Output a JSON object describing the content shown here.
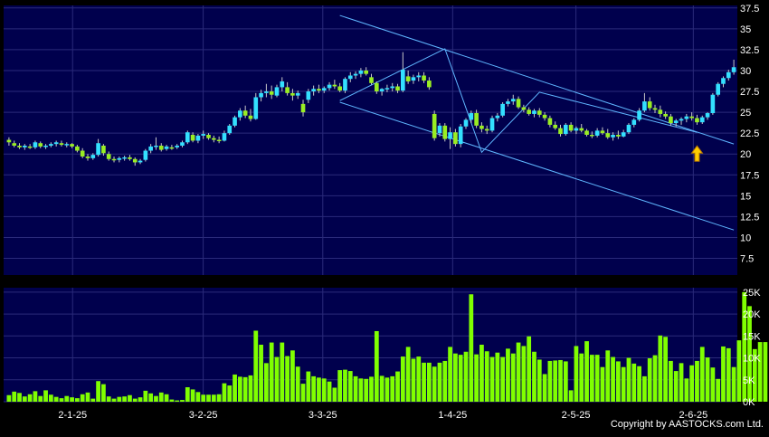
{
  "copyright": "Copyright by AASTOCKS.com Ltd.",
  "colors": {
    "panel_bg": "#00004d",
    "grid": "#2a2a7a",
    "up_candle": "#33e0ff",
    "down_candle": "#99ee22",
    "volume": "#80ff00",
    "trendline": "#5fb6ff",
    "arrow": "#ffcc00"
  },
  "chart_data": [
    {
      "type": "candlestick",
      "yaxis": {
        "ticks": [
          "37.5",
          "35",
          "32.5",
          "30",
          "27.5",
          "25",
          "22.5",
          "20",
          "17.5",
          "15",
          "12.5",
          "10",
          "7.5"
        ],
        "range": [
          5.5,
          37.8
        ],
        "side": "right"
      },
      "xaxis": {
        "tick_labels": [
          "2-1-25",
          "3-2-25",
          "3-3-25",
          "1-4-25",
          "2-5-25",
          "2-6-25"
        ]
      },
      "grid": true,
      "ohlc": [
        [
          21.7,
          22.0,
          21.0,
          21.4
        ],
        [
          21.3,
          21.6,
          20.8,
          21.0
        ],
        [
          21.0,
          21.3,
          20.6,
          20.8
        ],
        [
          20.8,
          21.2,
          20.5,
          21.0
        ],
        [
          20.9,
          21.2,
          20.6,
          20.8
        ],
        [
          20.8,
          21.6,
          20.6,
          21.4
        ],
        [
          21.3,
          21.5,
          20.7,
          20.9
        ],
        [
          20.9,
          21.2,
          20.6,
          21.0
        ],
        [
          21.0,
          21.4,
          20.8,
          21.2
        ],
        [
          21.2,
          21.6,
          20.9,
          21.4
        ],
        [
          21.3,
          21.6,
          20.9,
          21.1
        ],
        [
          21.1,
          21.4,
          20.8,
          21.2
        ],
        [
          21.2,
          21.3,
          20.7,
          20.9
        ],
        [
          20.9,
          21.1,
          20.2,
          20.4
        ],
        [
          20.4,
          20.7,
          19.5,
          19.7
        ],
        [
          19.7,
          20.0,
          19.2,
          19.5
        ],
        [
          19.5,
          20.1,
          19.3,
          19.9
        ],
        [
          19.9,
          21.8,
          19.7,
          21.3
        ],
        [
          21.0,
          21.2,
          19.8,
          20.1
        ],
        [
          20.0,
          20.3,
          19.2,
          19.4
        ],
        [
          19.4,
          19.7,
          19.0,
          19.3
        ],
        [
          19.3,
          19.7,
          19.0,
          19.5
        ],
        [
          19.5,
          19.8,
          19.2,
          19.6
        ],
        [
          19.6,
          19.9,
          19.2,
          19.4
        ],
        [
          19.4,
          19.6,
          18.6,
          19.0
        ],
        [
          19.0,
          19.4,
          18.8,
          19.2
        ],
        [
          19.3,
          20.6,
          19.1,
          20.4
        ],
        [
          20.4,
          21.2,
          20.1,
          20.9
        ],
        [
          20.9,
          22.0,
          20.5,
          21.0
        ],
        [
          21.0,
          21.3,
          20.3,
          20.5
        ],
        [
          20.6,
          21.1,
          20.4,
          20.9
        ],
        [
          20.8,
          21.1,
          20.5,
          20.7
        ],
        [
          20.8,
          21.2,
          20.6,
          21.0
        ],
        [
          21.0,
          21.6,
          20.8,
          21.4
        ],
        [
          21.4,
          22.8,
          21.2,
          22.6
        ],
        [
          22.3,
          22.6,
          21.4,
          21.6
        ],
        [
          21.6,
          22.4,
          21.3,
          22.2
        ],
        [
          22.2,
          22.8,
          21.8,
          22.4
        ],
        [
          22.3,
          22.5,
          21.7,
          21.9
        ],
        [
          21.9,
          22.2,
          21.4,
          21.7
        ],
        [
          21.7,
          22.1,
          21.3,
          21.6
        ],
        [
          21.6,
          22.8,
          21.5,
          22.5
        ],
        [
          22.5,
          23.6,
          22.3,
          23.4
        ],
        [
          23.4,
          24.6,
          23.2,
          24.4
        ],
        [
          24.4,
          25.5,
          24.0,
          25.2
        ],
        [
          25.2,
          25.8,
          24.3,
          24.6
        ],
        [
          24.6,
          25.4,
          23.9,
          24.2
        ],
        [
          24.2,
          27.3,
          24.1,
          26.8
        ],
        [
          26.8,
          27.7,
          26.3,
          27.3
        ],
        [
          27.3,
          28.4,
          26.8,
          27.5
        ],
        [
          27.5,
          28.2,
          26.6,
          27.1
        ],
        [
          27.0,
          28.3,
          26.8,
          28.0
        ],
        [
          28.0,
          29.2,
          27.5,
          28.7
        ],
        [
          28.0,
          28.6,
          27.0,
          27.3
        ],
        [
          27.3,
          27.8,
          26.4,
          27.0
        ],
        [
          27.0,
          27.6,
          26.6,
          27.3
        ],
        [
          26.0,
          26.5,
          24.5,
          25.0
        ],
        [
          26.5,
          27.8,
          26.1,
          27.5
        ],
        [
          27.5,
          28.2,
          27.0,
          27.8
        ],
        [
          27.8,
          28.3,
          27.3,
          27.6
        ],
        [
          27.6,
          28.1,
          27.3,
          27.9
        ],
        [
          27.9,
          28.6,
          27.6,
          28.3
        ],
        [
          28.3,
          28.9,
          27.8,
          28.1
        ],
        [
          28.1,
          28.5,
          27.4,
          27.6
        ],
        [
          27.6,
          29.2,
          27.3,
          29.0
        ],
        [
          29.0,
          29.8,
          28.6,
          29.4
        ],
        [
          29.4,
          29.9,
          29.0,
          29.6
        ],
        [
          29.6,
          30.3,
          29.2,
          30.0
        ],
        [
          30.0,
          30.4,
          29.4,
          29.6
        ],
        [
          29.2,
          29.6,
          28.3,
          28.5
        ],
        [
          28.5,
          28.7,
          27.2,
          27.5
        ],
        [
          27.5,
          27.9,
          27.0,
          27.8
        ],
        [
          27.8,
          28.3,
          27.4,
          27.9
        ],
        [
          27.9,
          28.5,
          27.5,
          28.1
        ],
        [
          28.1,
          28.4,
          27.3,
          27.6
        ],
        [
          27.6,
          32.2,
          27.4,
          30.1
        ],
        [
          29.3,
          30.0,
          28.4,
          28.7
        ],
        [
          28.8,
          29.5,
          28.4,
          29.2
        ],
        [
          29.2,
          29.8,
          28.7,
          29.4
        ],
        [
          29.4,
          29.8,
          28.5,
          28.8
        ],
        [
          28.8,
          29.2,
          27.7,
          28.0
        ],
        [
          24.8,
          25.2,
          21.6,
          21.9
        ],
        [
          22.5,
          23.7,
          22.1,
          23.4
        ],
        [
          23.4,
          23.7,
          21.5,
          21.8
        ],
        [
          21.8,
          23.2,
          20.6,
          22.6
        ],
        [
          22.6,
          23.0,
          20.9,
          21.2
        ],
        [
          21.2,
          23.6,
          20.8,
          23.3
        ],
        [
          23.3,
          24.3,
          23.0,
          24.1
        ],
        [
          24.1,
          25.2,
          23.7,
          24.9
        ],
        [
          24.9,
          25.3,
          23.1,
          23.4
        ],
        [
          23.4,
          23.8,
          22.6,
          23.0
        ],
        [
          23.0,
          23.4,
          22.4,
          22.8
        ],
        [
          22.8,
          24.6,
          22.6,
          24.3
        ],
        [
          24.3,
          24.9,
          23.9,
          24.6
        ],
        [
          24.6,
          26.2,
          24.4,
          26.0
        ],
        [
          26.0,
          26.6,
          25.7,
          26.3
        ],
        [
          26.3,
          27.1,
          25.9,
          26.6
        ],
        [
          26.6,
          26.9,
          25.4,
          25.6
        ],
        [
          25.6,
          25.9,
          25.0,
          25.3
        ],
        [
          25.3,
          25.6,
          24.6,
          24.8
        ],
        [
          24.8,
          25.4,
          24.4,
          25.2
        ],
        [
          25.2,
          25.5,
          24.4,
          24.7
        ],
        [
          24.7,
          25.0,
          24.0,
          24.3
        ],
        [
          24.3,
          24.6,
          23.2,
          23.5
        ],
        [
          23.5,
          23.9,
          22.9,
          23.1
        ],
        [
          23.1,
          23.5,
          22.1,
          22.4
        ],
        [
          22.4,
          23.7,
          22.2,
          23.5
        ],
        [
          23.5,
          23.8,
          22.6,
          22.8
        ],
        [
          22.8,
          23.3,
          22.4,
          23.1
        ],
        [
          23.1,
          23.6,
          22.6,
          22.8
        ],
        [
          22.8,
          23.0,
          22.1,
          22.3
        ],
        [
          22.3,
          22.7,
          21.9,
          22.2
        ],
        [
          22.2,
          23.1,
          22.0,
          22.8
        ],
        [
          22.8,
          23.2,
          22.3,
          22.5
        ],
        [
          22.5,
          23.0,
          21.8,
          22.0
        ],
        [
          22.0,
          22.6,
          21.6,
          22.3
        ],
        [
          22.3,
          22.8,
          21.8,
          22.1
        ],
        [
          22.1,
          22.9,
          22.0,
          22.6
        ],
        [
          22.6,
          23.7,
          22.4,
          23.5
        ],
        [
          23.5,
          24.3,
          23.2,
          24.1
        ],
        [
          24.1,
          25.5,
          23.9,
          25.2
        ],
        [
          25.2,
          27.3,
          25.0,
          26.3
        ],
        [
          26.3,
          26.8,
          25.2,
          25.5
        ],
        [
          25.5,
          25.9,
          24.9,
          25.3
        ],
        [
          25.3,
          25.8,
          24.4,
          24.8
        ],
        [
          24.8,
          25.1,
          24.2,
          24.5
        ],
        [
          24.5,
          24.8,
          23.4,
          23.7
        ],
        [
          23.7,
          24.2,
          23.3,
          24.0
        ],
        [
          24.0,
          24.4,
          23.5,
          24.2
        ],
        [
          24.2,
          24.8,
          23.8,
          24.5
        ],
        [
          24.5,
          25.0,
          24.0,
          24.3
        ],
        [
          24.3,
          24.7,
          23.5,
          23.8
        ],
        [
          23.8,
          24.6,
          23.6,
          24.4
        ],
        [
          24.4,
          25.0,
          24.1,
          24.9
        ],
        [
          24.9,
          27.3,
          24.7,
          27.1
        ],
        [
          27.1,
          28.6,
          26.9,
          28.4
        ],
        [
          28.4,
          29.3,
          28.0,
          29.1
        ],
        [
          29.1,
          30.1,
          28.8,
          29.8
        ],
        [
          29.8,
          31.3,
          29.5,
          30.4
        ]
      ],
      "annotations": [
        "yellow up-arrow marker"
      ]
    },
    {
      "type": "bar",
      "yaxis": {
        "ticks": [
          "25K",
          "20K",
          "15K",
          "10K",
          "5K",
          "0K"
        ],
        "range": [
          0,
          26000
        ],
        "side": "right"
      },
      "volumes": [
        1500,
        2300,
        2000,
        1200,
        1700,
        2400,
        1300,
        2600,
        1600,
        1100,
        800,
        1300,
        1000,
        800,
        1700,
        2100,
        700,
        4700,
        4000,
        1200,
        700,
        1100,
        1200,
        1500,
        700,
        1000,
        2500,
        1900,
        1300,
        2100,
        1700,
        500,
        300,
        400,
        3300,
        2800,
        2200,
        1600,
        1600,
        1600,
        1700,
        4200,
        3700,
        6200,
        5700,
        5600,
        6000,
        16200,
        13000,
        8800,
        13500,
        10200,
        13500,
        10400,
        11700,
        8000,
        4100,
        6900,
        5800,
        5500,
        5300,
        4600,
        3200,
        7200,
        7300,
        7000,
        5800,
        5300,
        5200,
        5700,
        16100,
        5900,
        5500,
        5800,
        6900,
        10300,
        12500,
        9800,
        10300,
        8900,
        8900,
        8000,
        8900,
        9300,
        12500,
        11000,
        10700,
        11400,
        24500,
        10800,
        13000,
        11500,
        10200,
        11200,
        10200,
        12100,
        11000,
        13500,
        12700,
        14900,
        11400,
        9600,
        6300,
        9300,
        9400,
        9500,
        9200,
        2600,
        12700,
        11000,
        13800,
        10700,
        10700,
        7900,
        11700,
        10200,
        9200,
        7900,
        10000,
        8700,
        8100,
        5800,
        9900,
        10600,
        15100,
        14800,
        9300,
        7000,
        8800,
        5300,
        8300,
        9300,
        12500,
        10100,
        7800,
        5200,
        12600,
        12200,
        7900,
        14000,
        25000,
        21800,
        12000,
        13600,
        13600
      ]
    }
  ]
}
